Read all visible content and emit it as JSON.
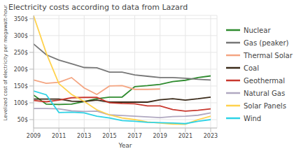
{
  "chart_data": {
    "type": "line",
    "title": "Electricity costs according to data from Lazard",
    "x_label": "Year",
    "y_label": "Levelized cost of electricity per megawatt-hour",
    "x": [
      2009,
      2010,
      2011,
      2012,
      2013,
      2014,
      2015,
      2016,
      2017,
      2018,
      2019,
      2020,
      2021,
      2022,
      2023
    ],
    "xlim": [
      2009,
      2023.5
    ],
    "xticks": [
      2009,
      2011,
      2013,
      2015,
      2017,
      2019,
      2021,
      2023
    ],
    "ylim": [
      25,
      360
    ],
    "yticks": [
      {
        "value": 50,
        "label": "50$"
      },
      {
        "value": 100,
        "label": "100$"
      },
      {
        "value": 150,
        "label": "150$"
      },
      {
        "value": 200,
        "label": "200$"
      },
      {
        "value": 250,
        "label": "250$"
      },
      {
        "value": 300,
        "label": "300$"
      },
      {
        "value": 350,
        "label": "350$"
      }
    ],
    "grid": true,
    "legend": "right",
    "series": [
      {
        "name": "Nuclear",
        "color": "#2e8b2e",
        "values": [
          123,
          96,
          95,
          96,
          104,
          112,
          117,
          117,
          148,
          151,
          155,
          163,
          167,
          175,
          180
        ]
      },
      {
        "name": "Gas (peaker)",
        "color": "#777777",
        "values": [
          275,
          243,
          227,
          216,
          205,
          204,
          191,
          191,
          183,
          179,
          175,
          175,
          173,
          170,
          168
        ]
      },
      {
        "name": "Thermal Solar",
        "color": "#f4a582",
        "values": [
          168,
          158,
          161,
          175,
          144,
          125,
          150,
          151,
          140,
          140,
          141,
          null,
          null,
          null,
          null
        ]
      },
      {
        "name": "Coal",
        "color": "#3b2b1a",
        "values": [
          111,
          111,
          111,
          105,
          104,
          108,
          102,
          102,
          102,
          102,
          109,
          112,
          108,
          112,
          117
        ]
      },
      {
        "name": "Geothermal",
        "color": "#c8382e",
        "values": [
          107,
          103,
          108,
          115,
          116,
          116,
          100,
          98,
          97,
          91,
          91,
          80,
          75,
          78,
          82
        ]
      },
      {
        "name": "Natural Gas",
        "color": "#b0a8c0",
        "values": [
          83,
          83,
          82,
          76,
          74,
          75,
          64,
          62,
          60,
          58,
          56,
          59,
          60,
          63,
          70
        ]
      },
      {
        "name": "Solar Panels",
        "color": "#ffd24d",
        "values": [
          359,
          248,
          157,
          125,
          104,
          79,
          64,
          55,
          50,
          43,
          40,
          37,
          36,
          50,
          60
        ]
      },
      {
        "name": "Wind",
        "color": "#2ed3e6",
        "values": [
          135,
          124,
          71,
          72,
          70,
          60,
          55,
          47,
          45,
          42,
          41,
          40,
          38,
          45,
          50
        ]
      }
    ]
  }
}
